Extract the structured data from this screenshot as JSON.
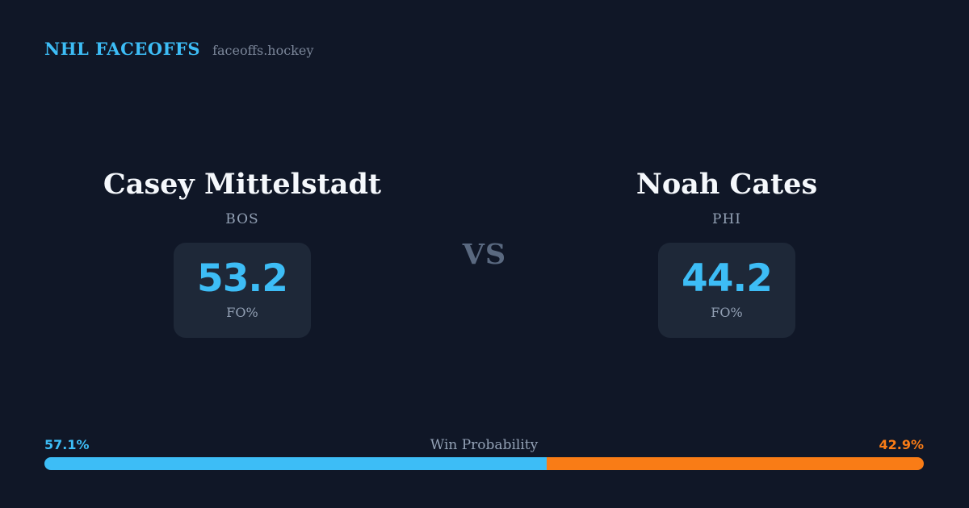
{
  "brand": {
    "title": "NHL FACEOFFS",
    "domain": "faceoffs.hockey"
  },
  "matchup": {
    "vs_label": "VS",
    "players": [
      {
        "name": "Casey Mittelstadt",
        "team": "BOS",
        "stat_value": "53.2",
        "stat_label": "FO%"
      },
      {
        "name": "Noah Cates",
        "team": "PHI",
        "stat_value": "44.2",
        "stat_label": "FO%"
      }
    ]
  },
  "win_probability": {
    "label": "Win Probability",
    "left_pct_text": "57.1%",
    "right_pct_text": "42.9%",
    "left_value": 57.1,
    "right_value": 42.9
  },
  "colors": {
    "background": "#101727",
    "card": "#1e2838",
    "accent_blue": "#3dbdf6",
    "accent_orange": "#f97c16",
    "muted": "#93a1b5",
    "name_text": "#f5f8fc"
  }
}
